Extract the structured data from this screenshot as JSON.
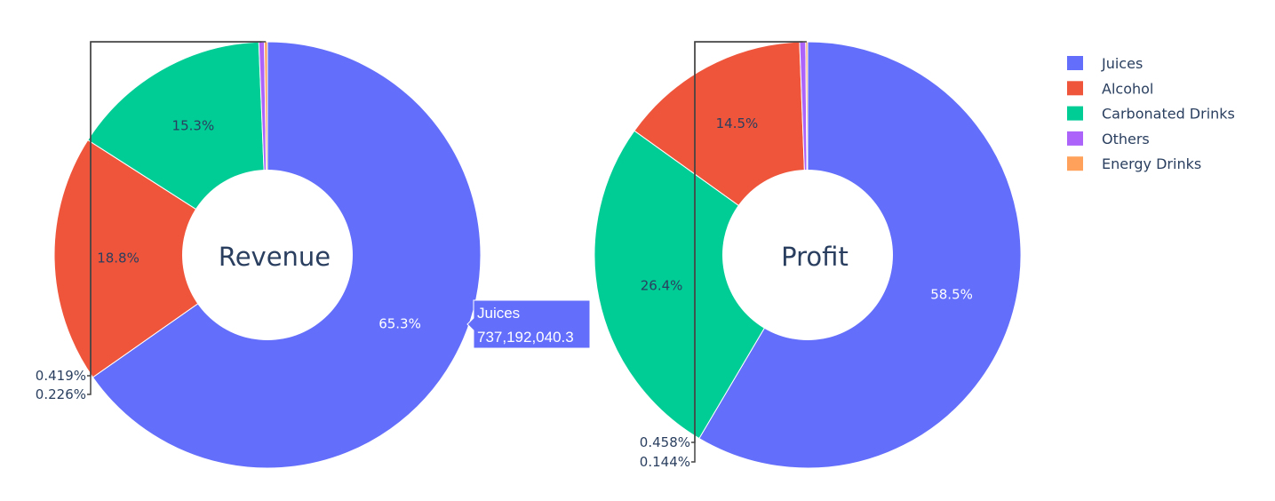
{
  "chart_data": [
    {
      "type": "pie",
      "title": "Revenue",
      "hole": true,
      "slices": [
        {
          "label": "Juices",
          "percent": 65.3,
          "color": "#636efa",
          "text": "65.3%"
        },
        {
          "label": "Alcohol",
          "percent": 18.8,
          "color": "#ef553b",
          "text": "18.8%"
        },
        {
          "label": "Carbonated Drinks",
          "percent": 15.3,
          "color": "#00cc96",
          "text": "15.3%"
        },
        {
          "label": "Others",
          "percent": 0.419,
          "color": "#ab63fa",
          "text": "0.419%"
        },
        {
          "label": "Energy Drinks",
          "percent": 0.226,
          "color": "#ffa15a",
          "text": "0.226%"
        }
      ],
      "hover": {
        "label": "Juices",
        "value": "737,192,040.3"
      }
    },
    {
      "type": "pie",
      "title": "Profit",
      "hole": true,
      "slices": [
        {
          "label": "Juices",
          "percent": 58.5,
          "color": "#636efa",
          "text": "58.5%"
        },
        {
          "label": "Carbonated Drinks",
          "percent": 26.4,
          "color": "#00cc96",
          "text": "26.4%"
        },
        {
          "label": "Alcohol",
          "percent": 14.5,
          "color": "#ef553b",
          "text": "14.5%"
        },
        {
          "label": "Others",
          "percent": 0.458,
          "color": "#ab63fa",
          "text": "0.458%"
        },
        {
          "label": "Energy Drinks",
          "percent": 0.144,
          "color": "#ffa15a",
          "text": "0.144%"
        }
      ]
    }
  ],
  "legend": {
    "placement": "top-right",
    "items": [
      {
        "label": "Juices",
        "color": "#636efa"
      },
      {
        "label": "Alcohol",
        "color": "#ef553b"
      },
      {
        "label": "Carbonated Drinks",
        "color": "#00cc96"
      },
      {
        "label": "Others",
        "color": "#ab63fa"
      },
      {
        "label": "Energy Drinks",
        "color": "#ffa15a"
      }
    ]
  }
}
